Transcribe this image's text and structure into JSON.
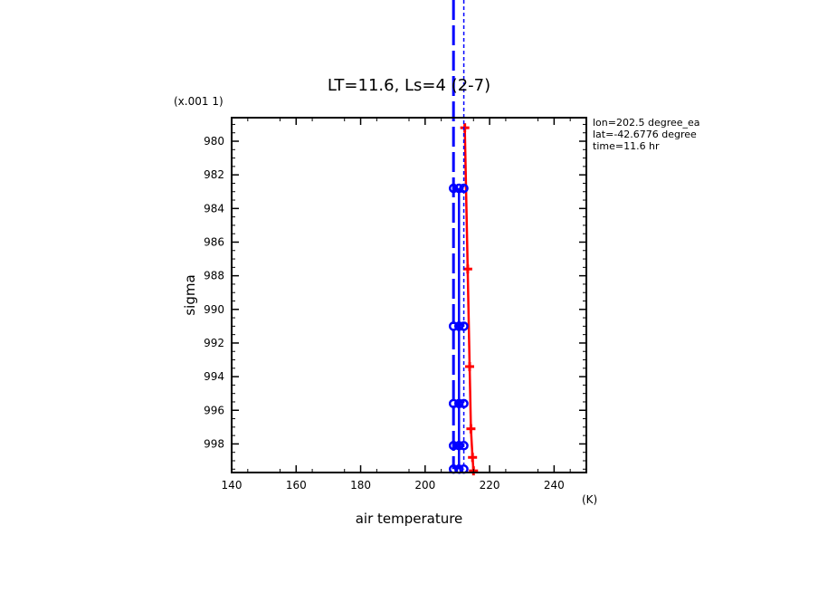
{
  "chart_data": {
    "type": "line",
    "title": "LT=11.6, Ls=4 (2-7)",
    "xlabel": "air temperature",
    "xunit": "(K)",
    "ylabel": "sigma",
    "yunit": "(x.001 1)",
    "xlim": [
      140,
      250
    ],
    "ylim": [
      978.6,
      999.7
    ],
    "y_inverted": true,
    "x_ticks": [
      140,
      160,
      180,
      200,
      220,
      240
    ],
    "y_ticks": [
      980,
      982,
      984,
      986,
      988,
      990,
      992,
      994,
      996,
      998
    ],
    "info": [
      "lon=202.5 degree_ea",
      "lat=-42.6776 degree",
      "time=11.6 hr"
    ],
    "series": [
      {
        "color": "#ff0000",
        "style": "solid",
        "marker": "plus",
        "points": [
          {
            "x": 212.3,
            "y": 979.2
          },
          {
            "x": 213.2,
            "y": 987.6
          },
          {
            "x": 213.8,
            "y": 993.4
          },
          {
            "x": 214.2,
            "y": 997.1
          },
          {
            "x": 214.7,
            "y": 998.8
          },
          {
            "x": 215.0,
            "y": 999.6
          }
        ]
      },
      {
        "color": "#0000ff",
        "style": "solid",
        "marker": "circle",
        "points": [
          {
            "x": 210.5,
            "y": 982.8
          },
          {
            "x": 210.5,
            "y": 991.0
          },
          {
            "x": 210.5,
            "y": 995.6
          },
          {
            "x": 210.5,
            "y": 998.1
          },
          {
            "x": 210.5,
            "y": 999.5
          }
        ]
      },
      {
        "color": "#0000ff",
        "style": "longdash",
        "marker": "circle",
        "points": [
          {
            "x": 208.8,
            "y": 970.5
          },
          {
            "x": 208.8,
            "y": 982.8
          },
          {
            "x": 208.8,
            "y": 991.0
          },
          {
            "x": 208.8,
            "y": 995.6
          },
          {
            "x": 208.8,
            "y": 998.1
          },
          {
            "x": 208.8,
            "y": 999.5
          }
        ]
      },
      {
        "color": "#0000ff",
        "style": "dotted",
        "marker": "circle",
        "points": [
          {
            "x": 212.0,
            "y": 970.5
          },
          {
            "x": 212.0,
            "y": 982.8
          },
          {
            "x": 212.0,
            "y": 991.0
          },
          {
            "x": 212.0,
            "y": 995.6
          },
          {
            "x": 212.0,
            "y": 998.1
          },
          {
            "x": 212.0,
            "y": 999.5
          }
        ]
      }
    ]
  }
}
